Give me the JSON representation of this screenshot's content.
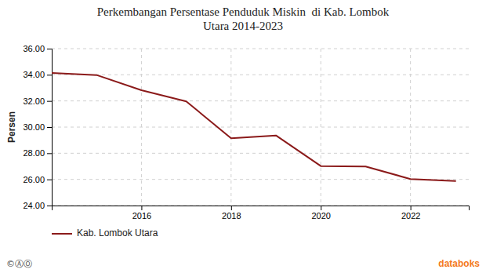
{
  "chart_data": {
    "type": "line",
    "title": "Perkembangan Persentase Penduduk Miskin  di Kab. Lombok\nUtara 2014-2023",
    "y_label": "Persen",
    "x": [
      2014,
      2015,
      2016,
      2017,
      2018,
      2019,
      2020,
      2021,
      2022,
      2023
    ],
    "series": [
      {
        "name": "Kab. Lombok Utara",
        "color": "#8B1A1A",
        "values": [
          34.14,
          33.98,
          32.82,
          31.97,
          29.14,
          29.36,
          27.02,
          26.98,
          26.03,
          25.87
        ]
      }
    ],
    "xlim": [
      2014,
      2023.3
    ],
    "xticks": [
      2016,
      2018,
      2020,
      2022
    ],
    "ylim": [
      24.0,
      36.0
    ],
    "yticks": [
      {
        "value": 24.0,
        "label": "24.00"
      },
      {
        "value": 26.0,
        "label": "26.00"
      },
      {
        "value": 28.0,
        "label": "28.00"
      },
      {
        "value": 30.0,
        "label": "30.00"
      },
      {
        "value": 32.0,
        "label": "32.00"
      },
      {
        "value": 34.0,
        "label": "34.00"
      },
      {
        "value": 36.0,
        "label": "36.00"
      }
    ],
    "grid": true,
    "legend": "bottom",
    "annotations": [
      {
        "text": "databoks",
        "color": "#f47920"
      },
      {
        "text": "©ⒶⓄ",
        "color": "#444444"
      }
    ]
  }
}
